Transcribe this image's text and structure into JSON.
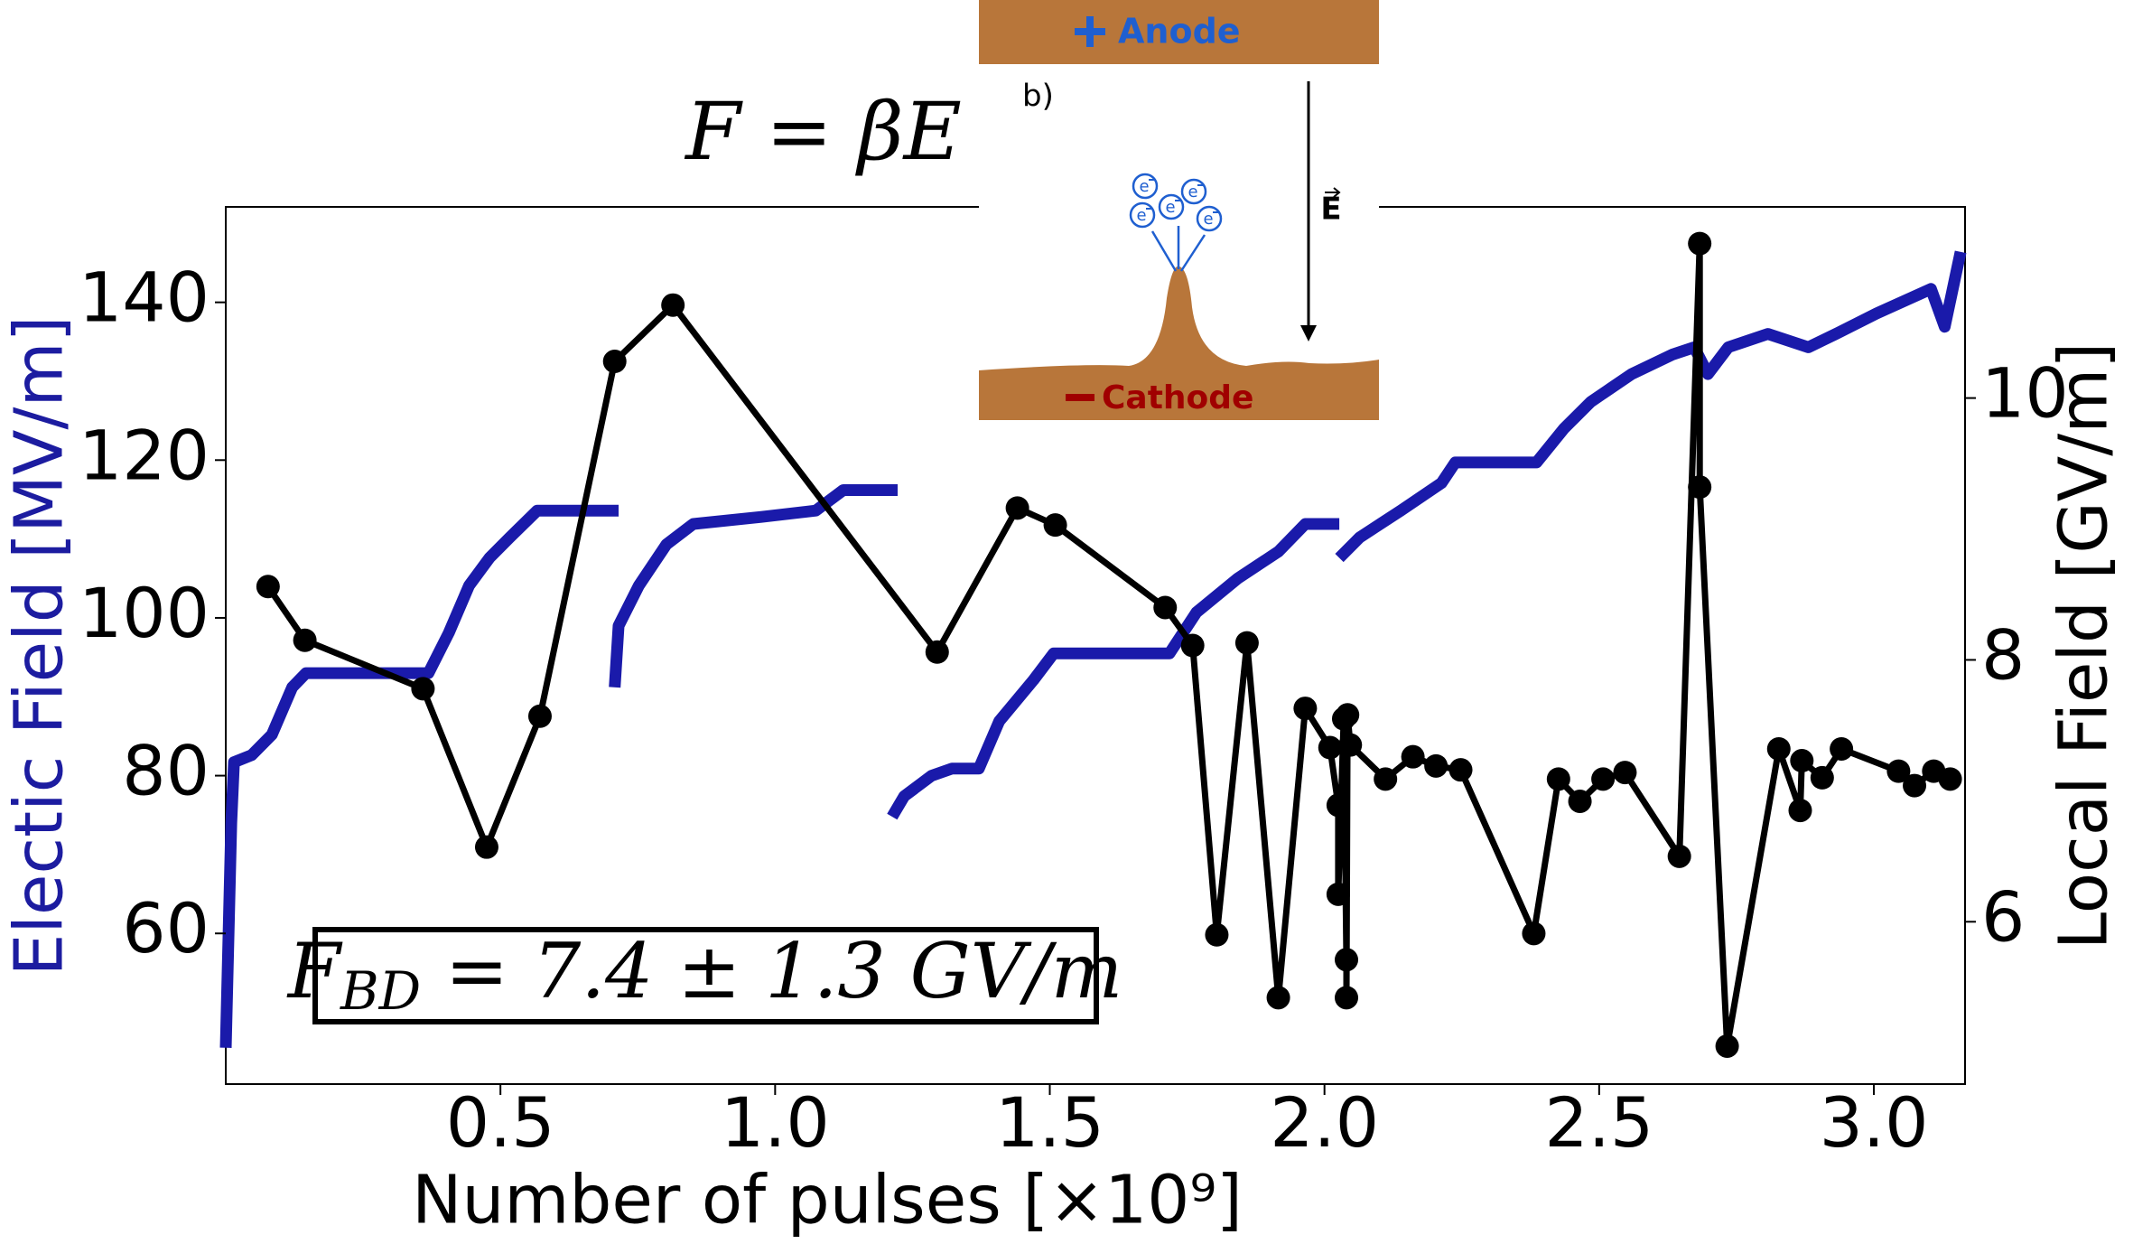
{
  "chart_data": {
    "type": "line",
    "xlabel": "Number of pulses [×10⁹]",
    "ylabel": "Electic Field [MV/m]",
    "y2label": "Local Field [GV/m]",
    "xlim": [
      0,
      3.166
    ],
    "xticks": [
      0.5,
      {
        "value": 1.0,
        "label": "1.0"
      },
      1.5,
      {
        "value": 2.0,
        "label": "2.0"
      },
      2.5,
      {
        "value": 3.0,
        "label": "3.0"
      }
    ],
    "ylim": [
      40.9,
      152.1
    ],
    "yticks": [
      60,
      80,
      100,
      120,
      140
    ],
    "y2lim": [
      4.76,
      11.46
    ],
    "y2ticks": [
      6,
      8,
      10
    ],
    "annotations": [
      {
        "text": "F = βE"
      },
      {
        "main": "F",
        "sub": "BD",
        "rest": " = 7.4 ± 1.3 GV/m"
      }
    ],
    "series": [
      {
        "color": "#1a1aaa",
        "axis": "y",
        "x": [
          0.0,
          0.01,
          0.015,
          0.047,
          0.084,
          0.121,
          0.146,
          0.369,
          0.406,
          0.443,
          0.48,
          0.517,
          0.567,
          0.715,
          null,
          0.708,
          0.715,
          0.752,
          0.802,
          0.851,
          0.975,
          1.074,
          1.124,
          1.223,
          null,
          1.213,
          1.235,
          1.285,
          1.322,
          1.371,
          1.408,
          1.47,
          1.507,
          1.718,
          1.767,
          1.842,
          1.916,
          1.965,
          2.027,
          null,
          2.027,
          2.064,
          2.139,
          2.213,
          2.238,
          2.386,
          2.436,
          2.485,
          2.559,
          2.634,
          2.673,
          2.698,
          2.735,
          2.807,
          2.881,
          2.931,
          3.005,
          3.104,
          3.129,
          3.158
        ],
        "values": [
          45.5,
          74,
          81.7,
          82.6,
          85.2,
          91.2,
          93,
          93,
          98.1,
          104.1,
          107.6,
          110.2,
          113.6,
          113.6,
          null,
          91.2,
          99,
          104.1,
          109.3,
          111.9,
          112.8,
          113.6,
          116.2,
          116.2,
          null,
          74.8,
          77.4,
          80,
          80.9,
          80.9,
          86.9,
          92.1,
          95.5,
          95.5,
          100.7,
          105,
          108.4,
          111.9,
          111.9,
          null,
          107.6,
          110.2,
          113.6,
          117.1,
          119.7,
          119.7,
          124,
          127.4,
          130.9,
          133.4,
          134.3,
          130.9,
          134.3,
          136,
          134.3,
          136,
          138.6,
          141.7,
          136.9,
          146.4
        ]
      },
      {
        "color": "#000000",
        "axis": "y2",
        "markers": true,
        "x": [
          0.077,
          0.144,
          0.359,
          0.475,
          0.572,
          0.708,
          0.814,
          1.295,
          1.441,
          1.51,
          1.71,
          1.76,
          1.804,
          1.859,
          1.916,
          1.965,
          2.01,
          2.025,
          2.025,
          2.035,
          2.04,
          2.04,
          2.042,
          2.047,
          2.111,
          2.161,
          2.203,
          2.248,
          2.381,
          2.426,
          2.465,
          2.507,
          2.547,
          2.646,
          2.683,
          2.683,
          2.733,
          2.827,
          2.866,
          2.869,
          2.906,
          2.941,
          3.045,
          3.074,
          3.109,
          3.139
        ],
        "values": [
          8.56,
          8.15,
          7.78,
          6.57,
          7.57,
          10.28,
          10.71,
          8.06,
          9.16,
          9.03,
          8.4,
          8.11,
          5.9,
          8.13,
          5.42,
          7.63,
          7.33,
          6.89,
          6.21,
          7.55,
          5.71,
          5.42,
          7.58,
          7.35,
          7.09,
          7.26,
          7.19,
          7.16,
          5.91,
          7.09,
          6.92,
          7.09,
          7.14,
          6.5,
          11.18,
          9.32,
          5.05,
          7.32,
          6.85,
          7.23,
          7.1,
          7.32,
          7.15,
          7.04,
          7.15,
          7.09
        ]
      }
    ]
  },
  "inset": {
    "anode": "Anode",
    "cathode": "Cathode",
    "panel": "b)",
    "field": "E",
    "electron": "e"
  }
}
